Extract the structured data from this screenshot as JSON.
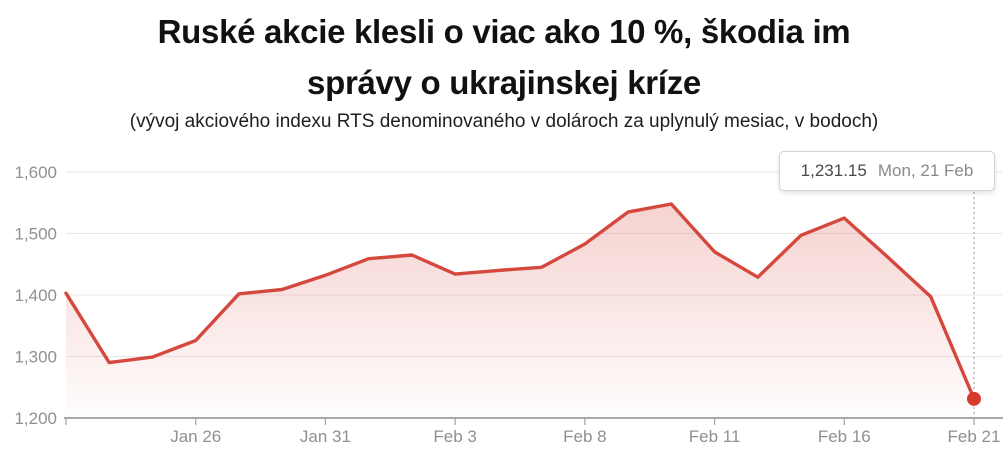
{
  "colors": {
    "line": "#d5483e",
    "marker": "#d6392e",
    "area_fill_base": "#d5483e",
    "grid": "#e7e7e7",
    "axis": "#a9a9a9",
    "tick_label": "#909090",
    "crosshair": "#b9b9b9",
    "title_text": "#111111",
    "tooltip_value_text": "#4a4a4a",
    "tooltip_date_text": "#8a8a8a"
  },
  "tooltip": {
    "value": "1,231.15",
    "date": "Mon, 21 Feb"
  },
  "chart_data": {
    "type": "area",
    "title": "Ruské akcie klesli o viac ako 10 %, škodia im správy o ukrajinskej kríze",
    "title_lines": [
      "Ruské akcie klesli o viac ako 10 %, škodia im",
      "správy o ukrajinskej kríze"
    ],
    "subtitle": "(vývoj akciového indexu RTS denominovaného v dolároch za uplynulý mesiac, v bodoch)",
    "x": [
      "Jan 21",
      "Jan 24",
      "Jan 25",
      "Jan 26",
      "Jan 27",
      "Jan 28",
      "Jan 31",
      "Feb 1",
      "Feb 2",
      "Feb 3",
      "Feb 4",
      "Feb 7",
      "Feb 8",
      "Feb 9",
      "Feb 10",
      "Feb 11",
      "Feb 14",
      "Feb 15",
      "Feb 16",
      "Feb 17",
      "Feb 18",
      "Feb 21"
    ],
    "values": [
      1403,
      1290,
      1299,
      1326,
      1402,
      1409,
      1432,
      1459,
      1465,
      1434,
      1440,
      1445,
      1483,
      1535,
      1548,
      1470,
      1429,
      1497,
      1525,
      1462,
      1397,
      1231.15
    ],
    "ylim": [
      1200,
      1600
    ],
    "yticks": {
      "values": [
        1200,
        1300,
        1400,
        1500,
        1600
      ],
      "labels": [
        "1,200",
        "1,300",
        "1,400",
        "1,500",
        "1,600"
      ]
    },
    "xticks": {
      "indices": [
        3,
        6,
        9,
        12,
        15,
        18,
        21
      ],
      "labels": [
        "Jan 26",
        "Jan 31",
        "Feb 3",
        "Feb 8",
        "Feb 11",
        "Feb 16",
        "Feb 21"
      ]
    },
    "last_point": {
      "x": "Feb 21",
      "value": 1231.15,
      "value_label": "1,231.15",
      "date_label": "Mon, 21 Feb"
    },
    "grid": "horizontal",
    "legend": "none"
  }
}
